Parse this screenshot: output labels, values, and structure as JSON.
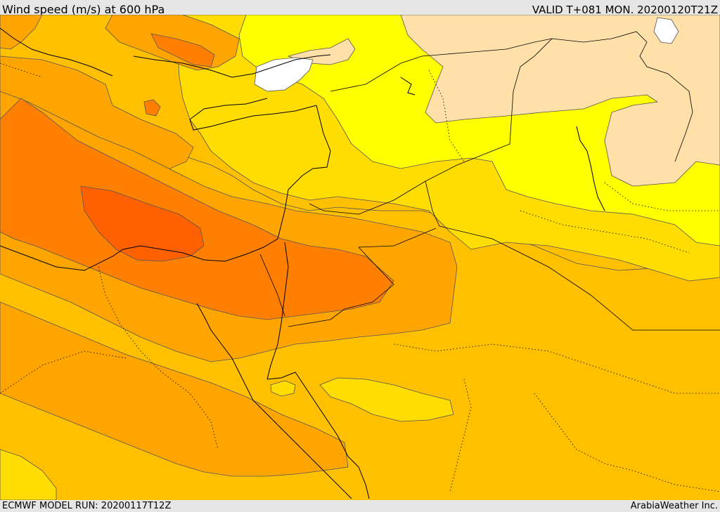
{
  "header": {
    "title": "Wind speed (m/s) at 600 hPa",
    "valid": "VALID T+081 MON. 20200120T21Z"
  },
  "footer": {
    "model_run": "ECMWF MODEL RUN: 20200117T12Z",
    "provider": "ArabiaWeather Inc."
  },
  "colors": {
    "band_white": "#ffffff",
    "band_peach": "#ffe0a8",
    "band_yellow": "#ffff00",
    "band_gold": "#ffdd00",
    "band_amber": "#ffc000",
    "band_orange": "#ffa500",
    "band_dark_orange": "#ff8000",
    "band_red_orange": "#ff6000",
    "contour": "#555555",
    "coastline": "#000000"
  }
}
